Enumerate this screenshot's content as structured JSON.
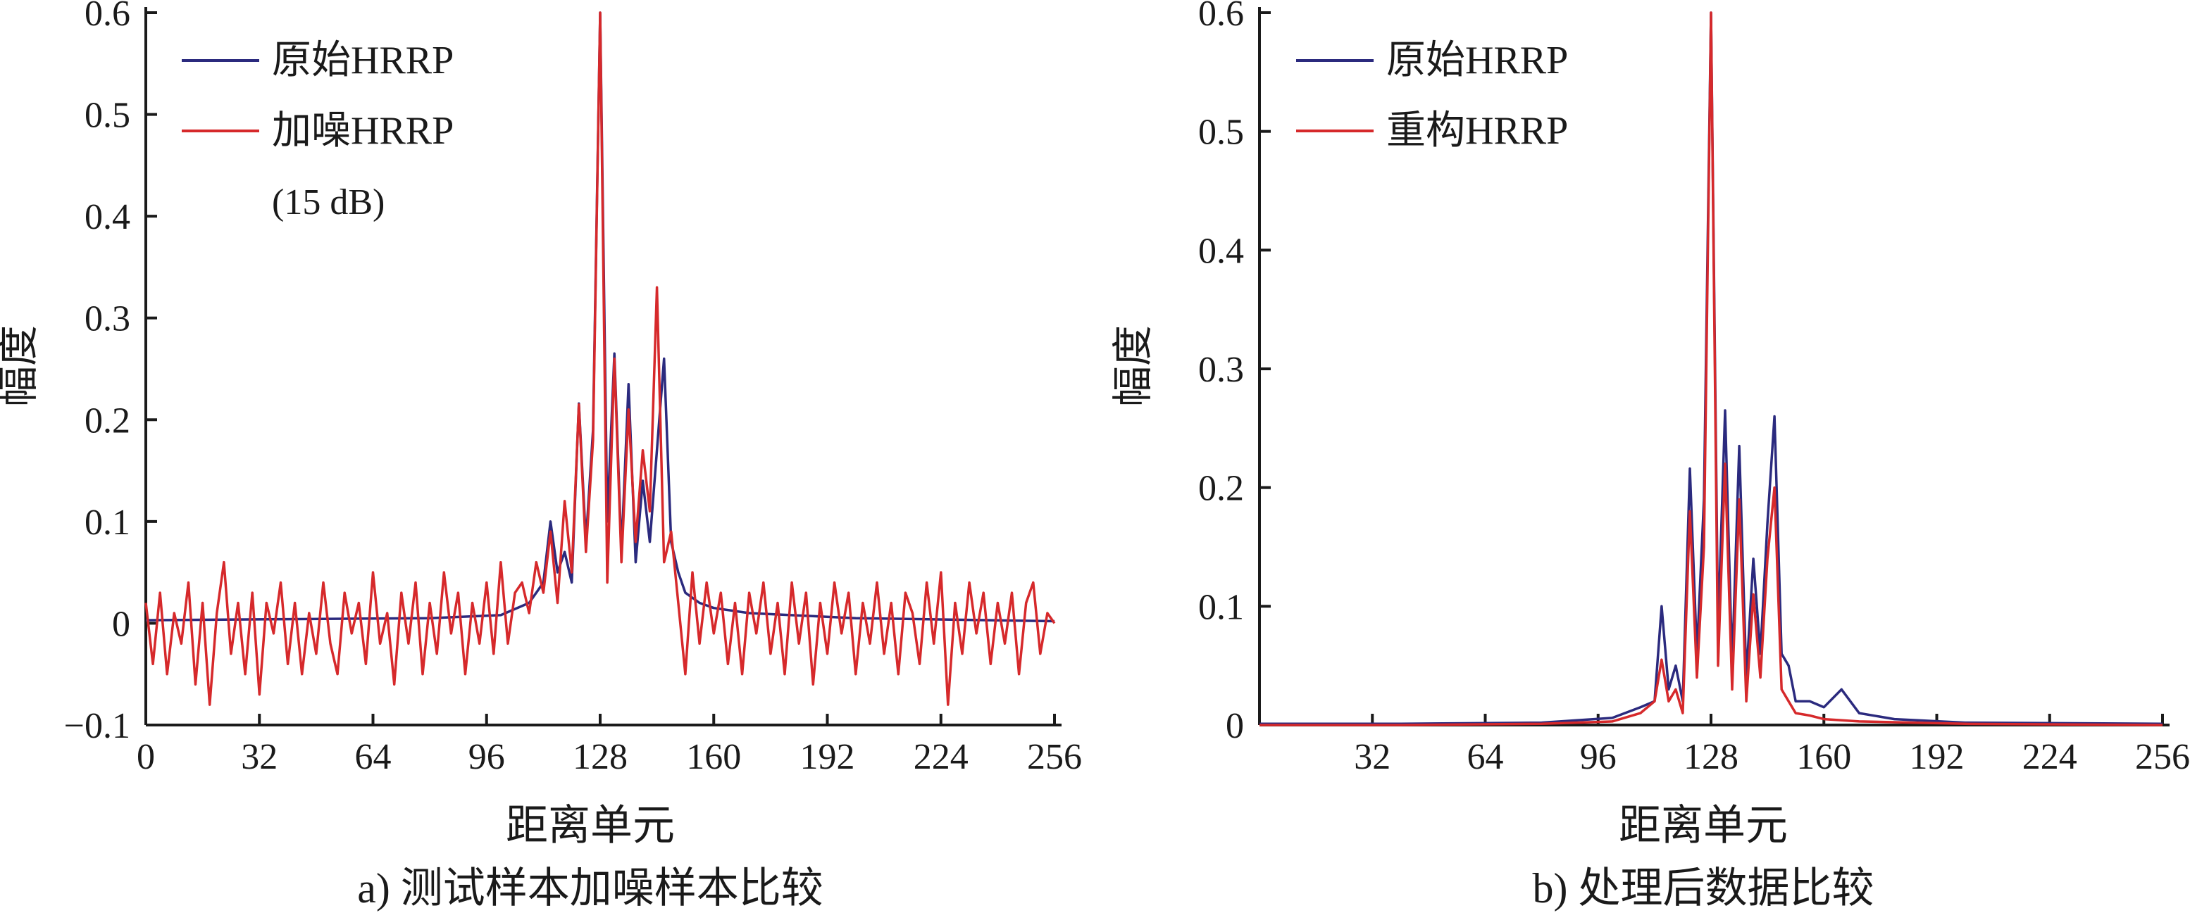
{
  "chart_data": [
    {
      "type": "line",
      "caption": "a) 测试样本加噪样本比较",
      "xlabel": "距离单元",
      "ylabel": "幅度",
      "xlim": [
        0,
        256
      ],
      "ylim": [
        -0.1,
        0.6
      ],
      "xticks": [
        0,
        32,
        64,
        96,
        128,
        160,
        192,
        224,
        256
      ],
      "xtick_labels": [
        "0",
        "32",
        "64",
        "96",
        "128",
        "160",
        "192",
        "224",
        "256"
      ],
      "yticks": [
        -0.1,
        0,
        0.1,
        0.2,
        0.3,
        0.4,
        0.5,
        0.6
      ],
      "ytick_labels": [
        "−0.1",
        "0",
        "0.1",
        "0.2",
        "0.3",
        "0.4",
        "0.5",
        "0.6"
      ],
      "grid": false,
      "legend_position": "top-left",
      "legend_note": "(15 dB)",
      "series": [
        {
          "name": "原始HRRP",
          "color": "#2b2a7e",
          "x": [
            0,
            40,
            80,
            100,
            108,
            112,
            114,
            116,
            118,
            120,
            122,
            124,
            126,
            128,
            130,
            132,
            134,
            136,
            138,
            140,
            142,
            144,
            146,
            148,
            150,
            152,
            156,
            160,
            170,
            200,
            256
          ],
          "y": [
            0.003,
            0.004,
            0.005,
            0.008,
            0.02,
            0.04,
            0.1,
            0.05,
            0.07,
            0.04,
            0.216,
            0.08,
            0.19,
            0.6,
            0.1,
            0.265,
            0.07,
            0.235,
            0.06,
            0.14,
            0.08,
            0.17,
            0.26,
            0.08,
            0.05,
            0.03,
            0.02,
            0.015,
            0.01,
            0.005,
            0.002
          ]
        },
        {
          "name": "加噪HRRP",
          "color": "#d6292b",
          "x": [
            0,
            2,
            4,
            6,
            8,
            10,
            12,
            14,
            16,
            18,
            20,
            22,
            24,
            26,
            28,
            30,
            32,
            34,
            36,
            38,
            40,
            42,
            44,
            46,
            48,
            50,
            52,
            54,
            56,
            58,
            60,
            62,
            64,
            66,
            68,
            70,
            72,
            74,
            76,
            78,
            80,
            82,
            84,
            86,
            88,
            90,
            92,
            94,
            96,
            98,
            100,
            102,
            104,
            106,
            108,
            110,
            112,
            114,
            116,
            118,
            120,
            122,
            124,
            126,
            128,
            130,
            132,
            134,
            136,
            138,
            140,
            142,
            144,
            146,
            148,
            150,
            152,
            154,
            156,
            158,
            160,
            162,
            164,
            166,
            168,
            170,
            172,
            174,
            176,
            178,
            180,
            182,
            184,
            186,
            188,
            190,
            192,
            194,
            196,
            198,
            200,
            202,
            204,
            206,
            208,
            210,
            212,
            214,
            216,
            218,
            220,
            222,
            224,
            226,
            228,
            230,
            232,
            234,
            236,
            238,
            240,
            242,
            244,
            246,
            248,
            250,
            252,
            254,
            256
          ],
          "y": [
            0.02,
            -0.04,
            0.03,
            -0.05,
            0.01,
            -0.02,
            0.04,
            -0.06,
            0.02,
            -0.08,
            0.01,
            0.06,
            -0.03,
            0.02,
            -0.05,
            0.03,
            -0.07,
            0.02,
            -0.01,
            0.04,
            -0.04,
            0.02,
            -0.05,
            0.01,
            -0.03,
            0.04,
            -0.02,
            -0.05,
            0.03,
            -0.01,
            0.02,
            -0.04,
            0.05,
            -0.02,
            0.01,
            -0.06,
            0.03,
            -0.02,
            0.04,
            -0.05,
            0.02,
            -0.03,
            0.05,
            -0.01,
            0.03,
            -0.05,
            0.02,
            -0.02,
            0.04,
            -0.03,
            0.06,
            -0.02,
            0.03,
            0.04,
            0.01,
            0.06,
            0.03,
            0.09,
            0.02,
            0.12,
            0.05,
            0.215,
            0.07,
            0.18,
            0.6,
            0.04,
            0.26,
            0.06,
            0.21,
            0.08,
            0.17,
            0.11,
            0.33,
            0.06,
            0.09,
            0.02,
            -0.05,
            0.05,
            -0.02,
            0.04,
            -0.01,
            0.03,
            -0.04,
            0.02,
            -0.05,
            0.03,
            -0.01,
            0.04,
            -0.03,
            0.02,
            -0.05,
            0.04,
            -0.02,
            0.03,
            -0.06,
            0.02,
            -0.03,
            0.04,
            -0.01,
            0.03,
            -0.05,
            0.02,
            -0.02,
            0.04,
            -0.03,
            0.02,
            -0.05,
            0.03,
            0.01,
            -0.04,
            0.04,
            -0.02,
            0.05,
            -0.08,
            0.02,
            -0.03,
            0.04,
            -0.01,
            0.03,
            -0.04,
            0.02,
            -0.02,
            0.03,
            -0.05,
            0.02,
            0.04,
            -0.03,
            0.01,
            0
          ]
        }
      ]
    },
    {
      "type": "line",
      "caption": "b) 处理后数据比较",
      "xlabel": "距离单元",
      "ylabel": "幅度",
      "xlim": [
        0,
        256
      ],
      "ylim": [
        0,
        0.6
      ],
      "xticks": [
        32,
        64,
        96,
        128,
        160,
        192,
        224,
        256
      ],
      "xtick_labels": [
        "32",
        "64",
        "96",
        "128",
        "160",
        "192",
        "224",
        "256"
      ],
      "yticks": [
        0,
        0.1,
        0.2,
        0.3,
        0.4,
        0.5,
        0.6
      ],
      "ytick_labels": [
        "0",
        "0.1",
        "0.2",
        "0.3",
        "0.4",
        "0.5",
        "0.6"
      ],
      "grid": false,
      "legend_position": "top-left",
      "series": [
        {
          "name": "原始HRRP",
          "color": "#2b2a7e",
          "x": [
            0,
            40,
            80,
            100,
            108,
            112,
            114,
            116,
            118,
            120,
            122,
            124,
            126,
            128,
            130,
            132,
            134,
            136,
            138,
            140,
            142,
            144,
            146,
            148,
            150,
            152,
            156,
            160,
            165,
            170,
            180,
            200,
            256
          ],
          "y": [
            0.001,
            0.001,
            0.002,
            0.006,
            0.015,
            0.02,
            0.1,
            0.03,
            0.05,
            0.02,
            0.216,
            0.06,
            0.19,
            0.6,
            0.08,
            0.265,
            0.05,
            0.235,
            0.04,
            0.14,
            0.06,
            0.17,
            0.26,
            0.06,
            0.05,
            0.02,
            0.02,
            0.015,
            0.03,
            0.01,
            0.005,
            0.002,
            0.001
          ]
        },
        {
          "name": "重构HRRP",
          "color": "#d6292b",
          "x": [
            0,
            40,
            80,
            100,
            108,
            112,
            114,
            116,
            118,
            120,
            122,
            124,
            126,
            128,
            130,
            132,
            134,
            136,
            138,
            140,
            142,
            144,
            146,
            148,
            150,
            152,
            156,
            160,
            170,
            200,
            256
          ],
          "y": [
            0,
            0,
            0.001,
            0.003,
            0.01,
            0.02,
            0.055,
            0.02,
            0.03,
            0.01,
            0.18,
            0.04,
            0.15,
            0.6,
            0.05,
            0.22,
            0.03,
            0.19,
            0.02,
            0.11,
            0.04,
            0.14,
            0.2,
            0.03,
            0.02,
            0.01,
            0.008,
            0.005,
            0.003,
            0.001,
            0
          ]
        }
      ]
    }
  ]
}
